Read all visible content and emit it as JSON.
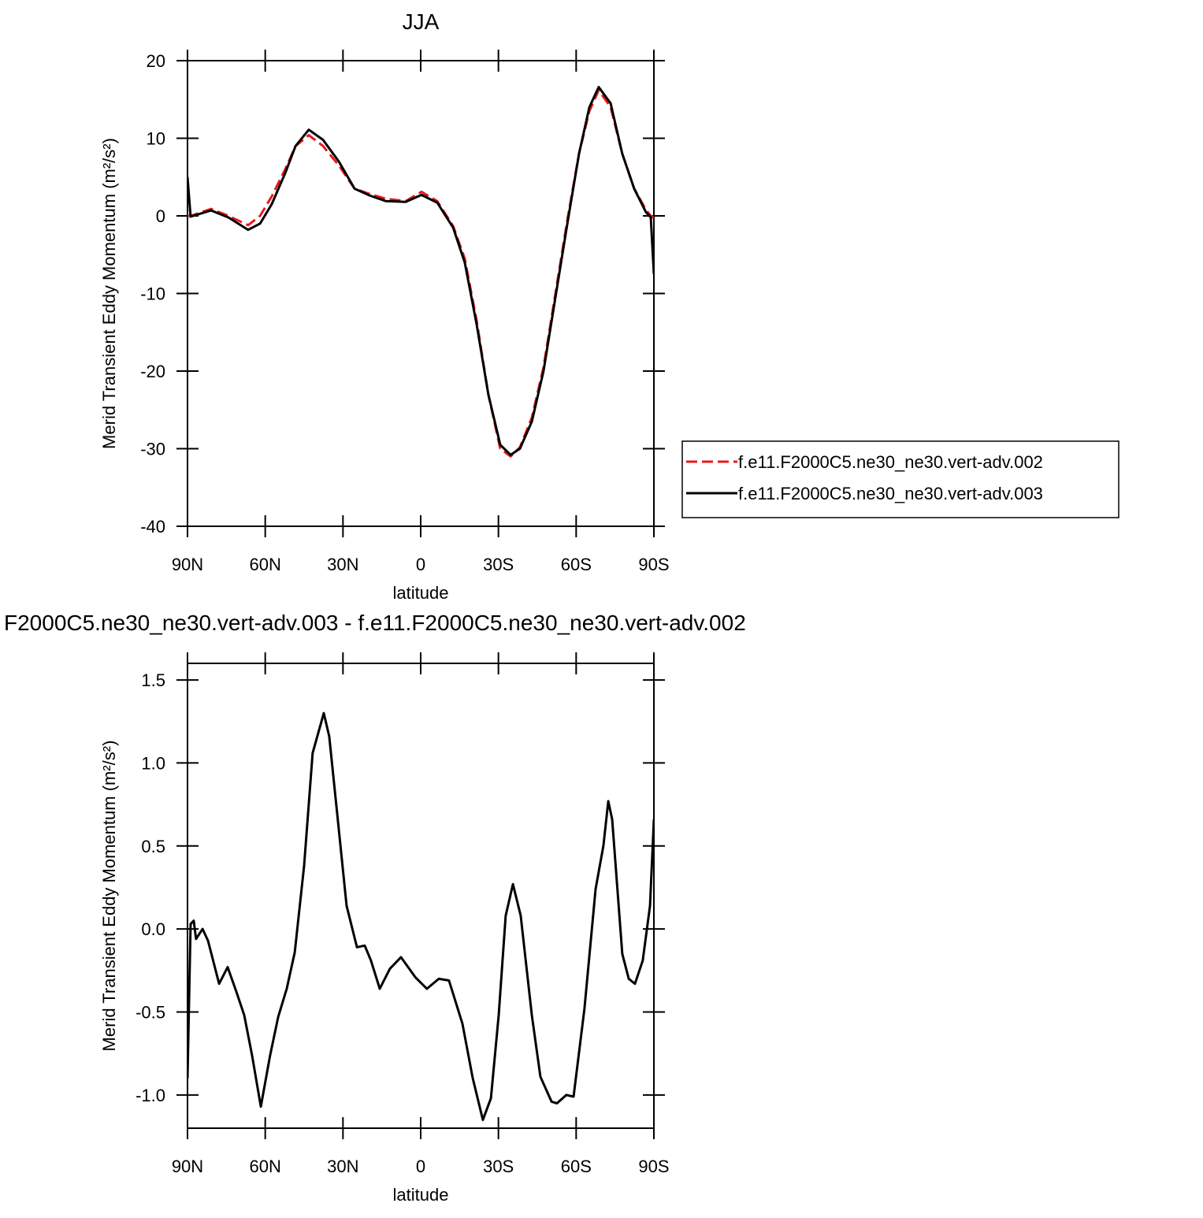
{
  "chart_data": [
    {
      "type": "line",
      "title": "JJA",
      "xlabel": "latitude",
      "ylabel": "Merid Transient Eddy Momentum (m²/s²)",
      "xlim": [
        90,
        -90
      ],
      "ylim": [
        -40,
        20
      ],
      "xticks": [
        {
          "value": 90,
          "label": "90N"
        },
        {
          "value": 60,
          "label": "60N"
        },
        {
          "value": 30,
          "label": "30N"
        },
        0,
        {
          "value": -30,
          "label": "30S"
        },
        {
          "value": -60,
          "label": "60S"
        },
        {
          "value": -90,
          "label": "90S"
        }
      ],
      "yticks": [
        -40,
        -30,
        -20,
        -10,
        0,
        10,
        20
      ],
      "legend": "right",
      "x": [
        90,
        88.8,
        80.9,
        74.2,
        66.6,
        62,
        57.5,
        52.3,
        48.3,
        43.2,
        37.7,
        31.6,
        25.5,
        19.5,
        13.4,
        5.8,
        -0.3,
        -6.4,
        -12.5,
        -17,
        -21.6,
        -26.1,
        -30.7,
        -34.7,
        -38.3,
        -42.9,
        -47.4,
        -52,
        -56.6,
        -61.1,
        -65.1,
        -68.7,
        -73.3,
        -77.8,
        -82.4,
        -86.9,
        -88.8,
        -90
      ],
      "series": [
        {
          "name": "f.e11.F2000C5.ne30_ne30.vert-adv.002",
          "color": "#e8191c",
          "linestyle": "dashed",
          "values": [
            0,
            0,
            0.9,
            0,
            -1.2,
            0,
            2.5,
            6,
            9,
            10.4,
            9,
            6.5,
            3.5,
            2.8,
            2.2,
            1.9,
            3.1,
            1.9,
            -1.3,
            -5.5,
            -13.5,
            -23,
            -30,
            -31,
            -29.8,
            -26,
            -19.5,
            -10,
            -0.5,
            8,
            13.5,
            16.2,
            14,
            8,
            3.5,
            0.8,
            0,
            -0.3
          ]
        },
        {
          "name": "f.e11.F2000C5.ne30_ne30.vert-adv.003",
          "color": "#000000",
          "linestyle": "solid",
          "values": [
            5,
            -0.1,
            0.7,
            -0.2,
            -1.8,
            -1,
            1.5,
            5.5,
            9,
            11.1,
            9.8,
            7,
            3.5,
            2.6,
            1.9,
            1.8,
            2.7,
            1.7,
            -1.5,
            -6,
            -14,
            -23,
            -29.5,
            -30.8,
            -30,
            -26.5,
            -20,
            -10.5,
            -1,
            8,
            14,
            16.6,
            14.5,
            8,
            3.5,
            0.5,
            -0.2,
            -7.5
          ]
        }
      ]
    },
    {
      "type": "line",
      "title": "F2000C5.ne30_ne30.vert-adv.003 - f.e11.F2000C5.ne30_ne30.vert-adv.002",
      "xlabel": "latitude",
      "ylabel": "Merid Transient Eddy Momentum (m²/s²)",
      "xlim": [
        90,
        -90
      ],
      "ylim": [
        -1.2,
        1.6
      ],
      "xticks": [
        {
          "value": 90,
          "label": "90N"
        },
        {
          "value": 60,
          "label": "60N"
        },
        {
          "value": 30,
          "label": "30N"
        },
        0,
        {
          "value": -30,
          "label": "30S"
        },
        {
          "value": -60,
          "label": "60S"
        },
        {
          "value": -90,
          "label": "90S"
        }
      ],
      "yticks": [
        {
          "value": -1,
          "label": "-1.0"
        },
        -0.5,
        {
          "value": 0,
          "label": "0.0"
        },
        0.5,
        {
          "value": 1,
          "label": "1.0"
        },
        1.5
      ],
      "x": [
        90,
        88.8,
        87.6,
        86.7,
        84.2,
        82.1,
        77.8,
        74.5,
        71.1,
        68.1,
        65.1,
        61.7,
        58.1,
        55,
        51.7,
        48.6,
        45,
        41.7,
        37.4,
        35.3,
        32.2,
        28.6,
        24.6,
        21.6,
        19.2,
        15.8,
        11.9,
        7.6,
        2.1,
        -2.4,
        -7,
        -10.9,
        -16.1,
        -20.1,
        -24,
        -27.1,
        -30.1,
        -32.8,
        -35.6,
        -38.6,
        -42.9,
        -46.2,
        -50.5,
        -52.6,
        -56.2,
        -59,
        -63.2,
        -67.5,
        -70.5,
        -72.4,
        -73.9,
        -77.8,
        -80.3,
        -82.7,
        -85.7,
        -88.5,
        -90
      ],
      "series": [
        {
          "color": "#000000",
          "linestyle": "solid",
          "values": [
            -0.9,
            0.03,
            0.05,
            -0.06,
            0,
            -0.07,
            -0.33,
            -0.23,
            -0.38,
            -0.52,
            -0.76,
            -1.07,
            -0.76,
            -0.53,
            -0.36,
            -0.14,
            0.38,
            1.06,
            1.3,
            1.16,
            0.69,
            0.14,
            -0.11,
            -0.1,
            -0.19,
            -0.36,
            -0.24,
            -0.17,
            -0.29,
            -0.36,
            -0.3,
            -0.31,
            -0.57,
            -0.9,
            -1.15,
            -1.02,
            -0.52,
            0.08,
            0.27,
            0.08,
            -0.52,
            -0.89,
            -1.04,
            -1.05,
            -1,
            -1.01,
            -0.48,
            0.24,
            0.5,
            0.77,
            0.66,
            -0.15,
            -0.3,
            -0.33,
            -0.19,
            0.14,
            0.66
          ]
        }
      ]
    }
  ]
}
